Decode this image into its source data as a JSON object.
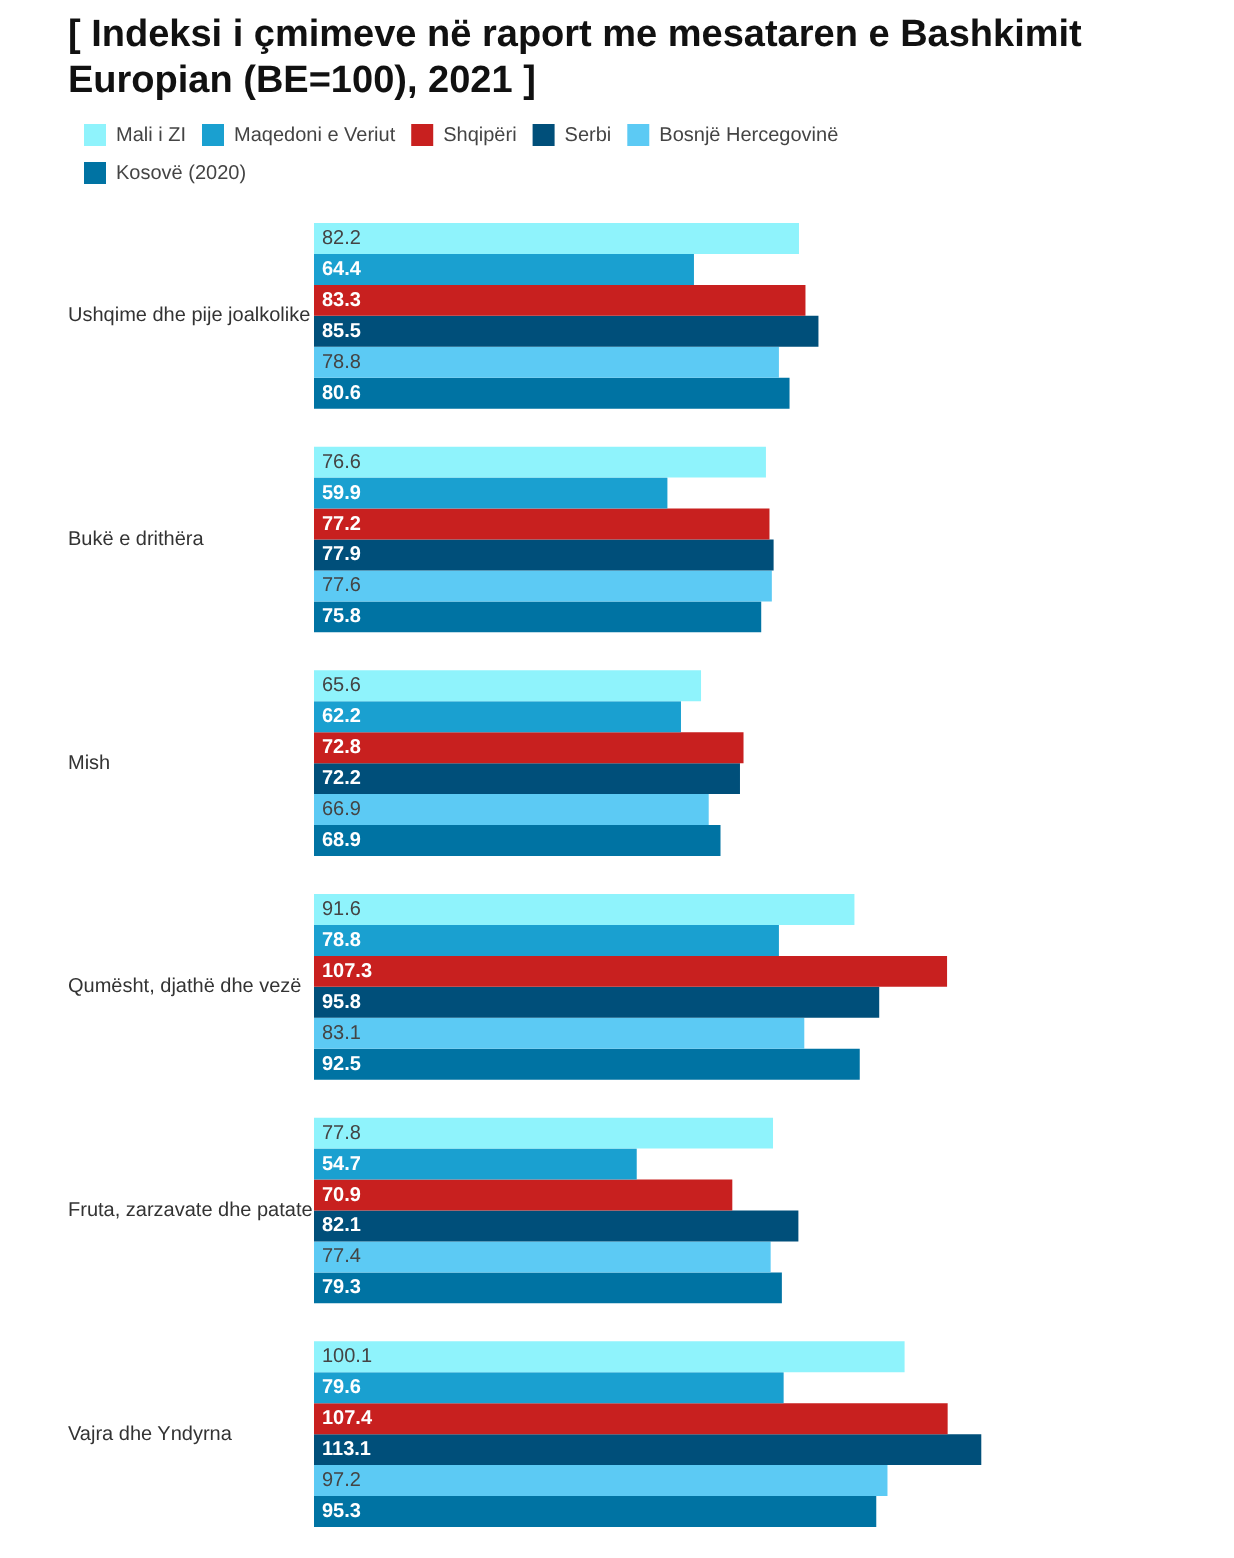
{
  "chart_data": {
    "type": "bar",
    "orientation": "horizontal",
    "title": "[  Indeksi i çmimeve në raport me mesataren e Bashkimit Europian (BE=100), 2021 ]",
    "categories": [
      "Ushqime dhe pije joalkolike",
      "Bukë e drithëra",
      "Mish",
      "Qumësht, djathë dhe vezë",
      "Fruta, zarzavate dhe patate",
      "Vajra dhe Yndyrna"
    ],
    "series": [
      {
        "name": "Mali i ZI",
        "color": "#8ff3fc",
        "values": [
          82.2,
          76.6,
          65.6,
          91.6,
          77.8,
          100.1
        ]
      },
      {
        "name": "Maqedoni e Veriut",
        "color": "#1aa0d0",
        "values": [
          64.4,
          59.9,
          62.2,
          78.8,
          54.7,
          79.6
        ]
      },
      {
        "name": "Shqipëri",
        "color": "#c8201f",
        "values": [
          83.3,
          77.2,
          72.8,
          107.3,
          70.9,
          107.4
        ]
      },
      {
        "name": "Serbi",
        "color": "#004f7a",
        "values": [
          85.5,
          77.9,
          72.2,
          95.8,
          82.1,
          113.1
        ]
      },
      {
        "name": "Bosnjë Hercegovinë",
        "color": "#5ccaf4",
        "values": [
          78.8,
          77.6,
          66.9,
          83.1,
          77.4,
          97.2
        ]
      },
      {
        "name": "Kosovë (2020)",
        "color": "#0073a3",
        "values": [
          80.6,
          75.8,
          68.9,
          92.5,
          79.3,
          95.3
        ]
      }
    ],
    "tick_labels": "y",
    "legend": "top left",
    "data_labels": true
  }
}
